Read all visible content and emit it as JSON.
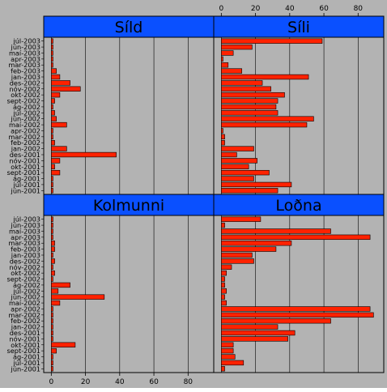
{
  "chart_data": {
    "type": "bar",
    "orientation": "horizontal",
    "layout": "2x2 trellis",
    "xlim": [
      -3,
      95
    ],
    "xticks": [
      0,
      20,
      40,
      60,
      80
    ],
    "grid": true,
    "colors": {
      "background": "#b3b3b3",
      "strip": "#0a50ff",
      "bar_fill": "#ff2200",
      "bar_edge": "#000000",
      "grid": "#000000"
    },
    "categories": [
      "jún-2001",
      "júl-2001",
      "ág-2001",
      "sept-2001",
      "okt-2001",
      "nóv-2001",
      "des-2001",
      "jan-2002",
      "feb-2002",
      "mar-2002",
      "apr-2002",
      "maí-2002",
      "jún-2002",
      "júl-2002",
      "ág-2002",
      "sept-2002",
      "okt-2002",
      "nóv-2002",
      "des-2002",
      "jan-2003",
      "feb-2003",
      "mar-2003",
      "apr-2003",
      "maí-2003",
      "jún-2003",
      "júl-2003"
    ],
    "panels": [
      {
        "title": "Síld",
        "values": [
          1,
          1,
          1,
          5,
          2,
          5,
          38,
          9,
          2,
          1,
          1,
          9,
          3,
          2,
          1,
          2,
          5,
          17,
          11,
          5,
          3,
          1,
          1,
          1,
          1,
          1
        ]
      },
      {
        "title": "Síli",
        "values": [
          33,
          41,
          19,
          28,
          16,
          21,
          9,
          19,
          2,
          2,
          1,
          50,
          54,
          33,
          32,
          33,
          37,
          29,
          24,
          51,
          12,
          4,
          1,
          7,
          18,
          59
        ]
      },
      {
        "title": "Kolmunni",
        "values": [
          1,
          1,
          1,
          3,
          14,
          1,
          1,
          1,
          1,
          1,
          1,
          5,
          31,
          4,
          11,
          1,
          2,
          1,
          2,
          1,
          2,
          2,
          1,
          1,
          1,
          1
        ]
      },
      {
        "title": "Loðna",
        "values": [
          2,
          13,
          8,
          7,
          7,
          39,
          43,
          33,
          64,
          89,
          87,
          3,
          2,
          3,
          2,
          2,
          3,
          6,
          19,
          18,
          32,
          41,
          87,
          64,
          2,
          23
        ]
      }
    ]
  }
}
